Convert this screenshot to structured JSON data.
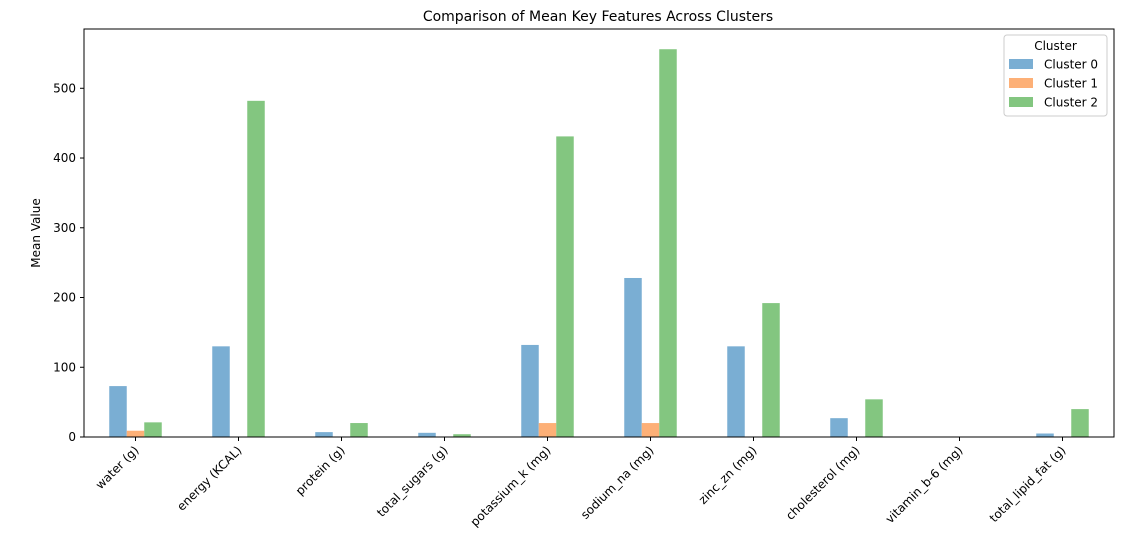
{
  "chart_data": {
    "type": "bar",
    "title": "Comparison of Mean Key Features Across Clusters",
    "xlabel": "",
    "ylabel": "Mean Value",
    "ylim": [
      0,
      585
    ],
    "yticks": [
      0,
      100,
      200,
      300,
      400,
      500
    ],
    "grid": false,
    "legend": {
      "title": "Cluster",
      "placement": "top-right"
    },
    "categories": [
      "water (g)",
      "energy (KCAL)",
      "protein (g)",
      "total_sugars (g)",
      "potassium_k (mg)",
      "sodium_na (mg)",
      "zinc_zn (mg)",
      "cholesterol (mg)",
      "vitamin_b-6 (mg)",
      "total_lipid_fat (g)"
    ],
    "series": [
      {
        "name": "Cluster 0",
        "color": "#7aaed3",
        "values": [
          73,
          130,
          7,
          6,
          132,
          228,
          130,
          27,
          0,
          5
        ]
      },
      {
        "name": "Cluster 1",
        "color": "#fdb077",
        "values": [
          9,
          0,
          0,
          0,
          20,
          20,
          0,
          0,
          0,
          0
        ]
      },
      {
        "name": "Cluster 2",
        "color": "#83c680",
        "values": [
          21,
          482,
          20,
          4,
          431,
          556,
          192,
          54,
          0,
          40
        ]
      }
    ]
  }
}
